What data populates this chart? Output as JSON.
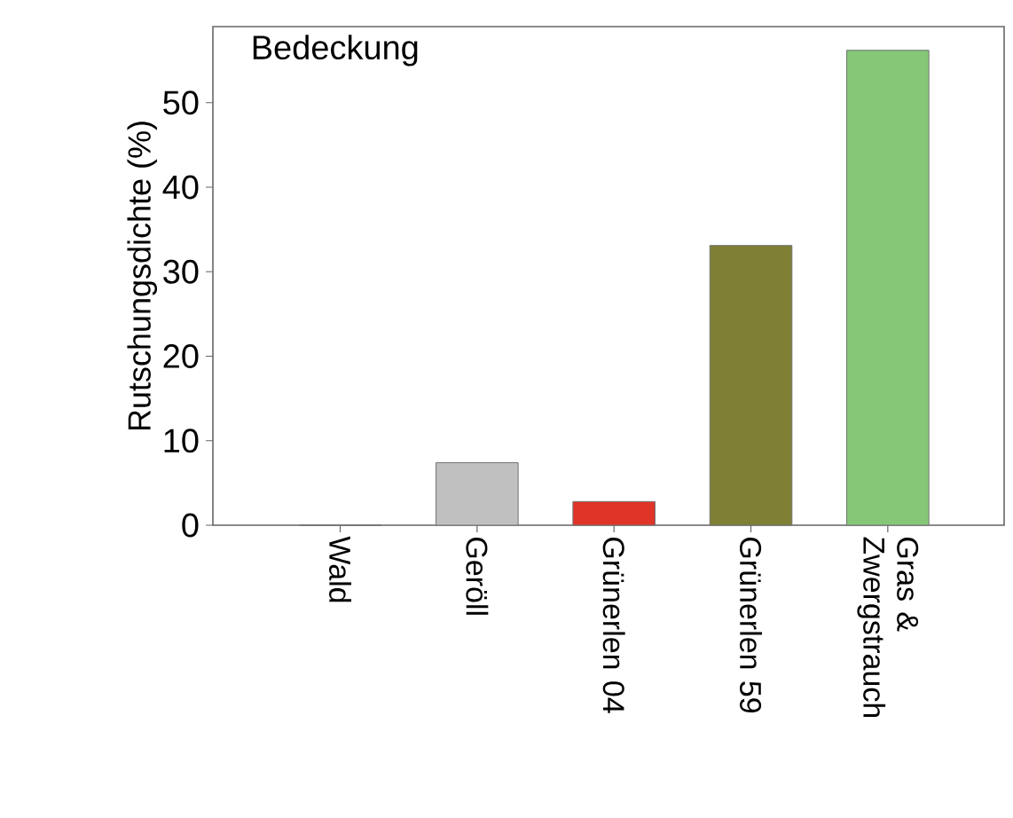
{
  "chart_data": {
    "type": "bar",
    "title": "Bedeckung",
    "ylabel": "Rutschungsdichte (%)",
    "categories": [
      "Wald",
      "Geröll",
      "Grünerlen 04",
      "Grünerlen 59",
      "Gras & Zwergstrauch"
    ],
    "values": [
      0,
      7.4,
      2.8,
      33.1,
      56.2
    ],
    "colors": [
      "#2e6b2e",
      "#c0c0c0",
      "#e03428",
      "#7f7f35",
      "#85c777"
    ],
    "ylim": [
      0,
      59
    ],
    "yticks": [
      0,
      10,
      20,
      30,
      40,
      50
    ]
  }
}
